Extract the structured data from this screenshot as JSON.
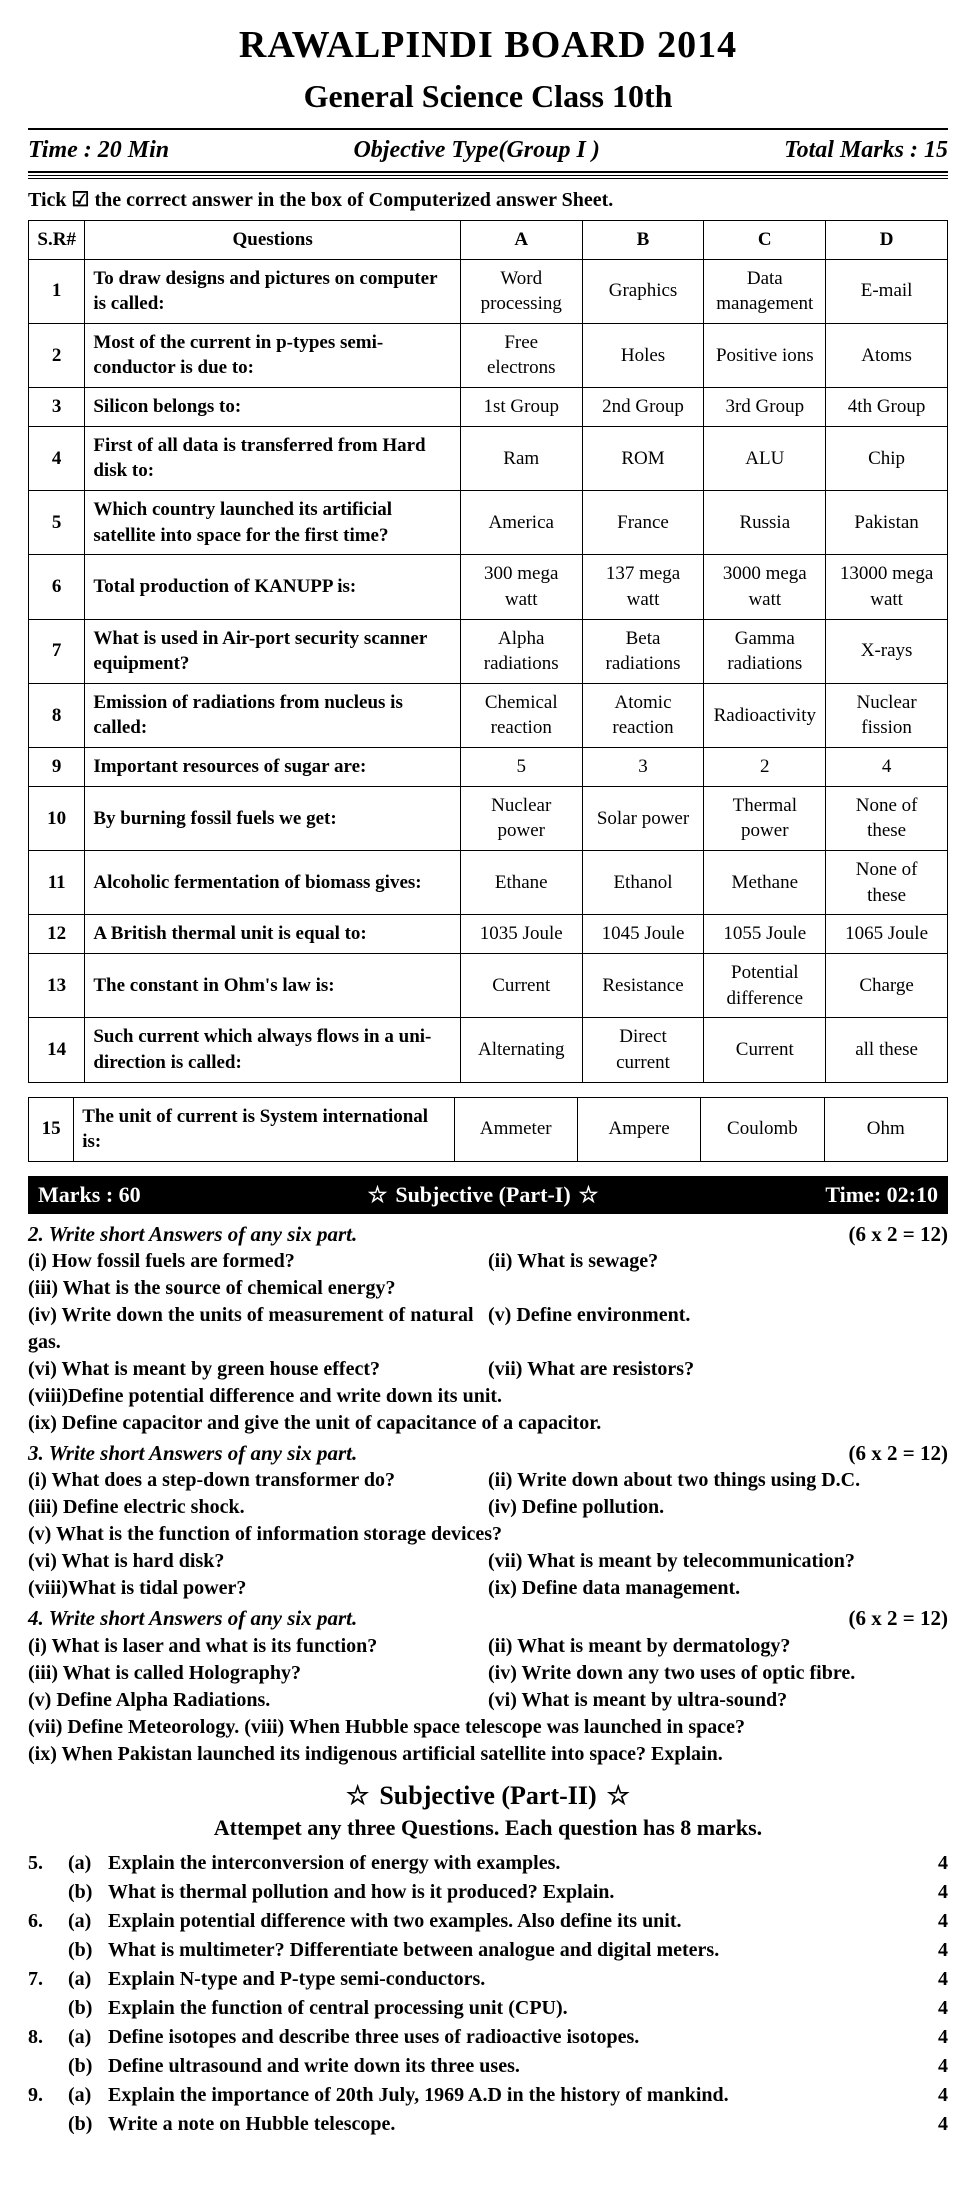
{
  "header": {
    "board": "RAWALPINDI BOARD   2014",
    "class": "General Science Class 10th",
    "time": "Time : 20 Min",
    "group": "Objective Type(Group I )",
    "marks": "Total Marks : 15"
  },
  "instruction": "Tick  ☑  the correct answer in the box of Computerized answer Sheet.",
  "table_headers": {
    "sr": "S.R#",
    "q": "Questions",
    "a": "A",
    "b": "B",
    "c": "C",
    "d": "D"
  },
  "questions": [
    {
      "n": "1",
      "q": "To draw designs and pictures on computer is called:",
      "a": "Word processing",
      "b": "Graphics",
      "c": "Data management",
      "d": "E-mail"
    },
    {
      "n": "2",
      "q": "Most of the current in p-types semi-conductor is due to:",
      "a": "Free electrons",
      "b": "Holes",
      "c": "Positive ions",
      "d": "Atoms"
    },
    {
      "n": "3",
      "q": "Silicon belongs to:",
      "a": "1st Group",
      "b": "2nd Group",
      "c": "3rd Group",
      "d": "4th Group"
    },
    {
      "n": "4",
      "q": "First of all data is transferred from Hard disk to:",
      "a": "Ram",
      "b": "ROM",
      "c": "ALU",
      "d": "Chip"
    },
    {
      "n": "5",
      "q": "Which country launched its artificial satellite into space for the first time?",
      "a": "America",
      "b": "France",
      "c": "Russia",
      "d": "Pakistan"
    },
    {
      "n": "6",
      "q": "Total production of KANUPP is:",
      "a": "300 mega watt",
      "b": "137 mega watt",
      "c": "3000 mega watt",
      "d": "13000 mega watt"
    },
    {
      "n": "7",
      "q": "What is used in Air-port security scanner equipment?",
      "a": "Alpha radiations",
      "b": "Beta radiations",
      "c": "Gamma radiations",
      "d": "X-rays"
    },
    {
      "n": "8",
      "q": "Emission of radiations from nucleus is called:",
      "a": "Chemical reaction",
      "b": "Atomic reaction",
      "c": "Radioactivity",
      "d": "Nuclear fission"
    },
    {
      "n": "9",
      "q": "Important resources of sugar are:",
      "a": "5",
      "b": "3",
      "c": "2",
      "d": "4"
    },
    {
      "n": "10",
      "q": "By burning fossil fuels we get:",
      "a": "Nuclear power",
      "b": "Solar power",
      "c": "Thermal power",
      "d": "None of these"
    },
    {
      "n": "11",
      "q": "Alcoholic fermentation of biomass gives:",
      "a": "Ethane",
      "b": "Ethanol",
      "c": "Methane",
      "d": "None of these"
    },
    {
      "n": "12",
      "q": "A British thermal unit is equal to:",
      "a": "1035 Joule",
      "b": "1045 Joule",
      "c": "1055 Joule",
      "d": "1065 Joule"
    },
    {
      "n": "13",
      "q": "The constant in Ohm's law is:",
      "a": "Current",
      "b": "Resistance",
      "c": "Potential difference",
      "d": "Charge"
    },
    {
      "n": "14",
      "q": "Such current which always flows in a uni-direction is called:",
      "a": "Alternating",
      "b": "Direct current",
      "c": "Current",
      "d": "all these"
    }
  ],
  "question15": {
    "n": "15",
    "q": "The unit of current is System international is:",
    "a": "Ammeter",
    "b": "Ampere",
    "c": "Coulomb",
    "d": "Ohm"
  },
  "blackbar": {
    "marks": "Marks : 60",
    "title": "Subjective (Part-I)",
    "time": "Time: 02:10"
  },
  "sec2": {
    "heading": "2.  Write short Answers of any six part.",
    "marks": "(6 x 2 = 12)",
    "items": [
      [
        "(i)   How fossil fuels are formed?",
        "(ii)  What is sewage?"
      ],
      [
        "(iii) What is the source of chemical energy?",
        ""
      ],
      [
        "(iv)  Write down the units of measurement of natural gas.",
        "(v)   Define environment."
      ],
      [
        "(vi)  What is meant by green house effect?",
        "(vii) What are resistors?"
      ],
      [
        "(viii)Define potential difference and write down its unit.",
        ""
      ],
      [
        "(ix)  Define capacitor and give the unit of capacitance of a capacitor.",
        ""
      ]
    ]
  },
  "sec3": {
    "heading": "3.  Write short Answers of any six part.",
    "marks": "(6 x 2 = 12)",
    "items": [
      [
        "(i)   What does a step-down transformer do?",
        "(ii)  Write down about two things using D.C."
      ],
      [
        "(iii) Define electric shock.",
        "(iv)  Define pollution."
      ],
      [
        "(v)   What is the function of information storage devices?",
        ""
      ],
      [
        "(vi)  What is hard disk?",
        "(vii) What is meant by telecommunication?"
      ],
      [
        "(viii)What is tidal power?",
        "(ix)  Define data management."
      ]
    ]
  },
  "sec4": {
    "heading": "4.  Write short Answers of any six part.",
    "marks": "(6 x 2 = 12)",
    "items": [
      [
        "(i)   What is laser and what is its function?",
        "(ii)  What is meant by dermatology?"
      ],
      [
        "(iii) What is called Holography?",
        "(iv)  Write down any two uses of optic fibre."
      ],
      [
        "(v)   Define Alpha Radiations.",
        "(vi)  What is meant by ultra-sound?"
      ],
      [
        "(vii) Define Meteorology.        (viii) When Hubble space telescope was launched in space?",
        ""
      ],
      [
        "(ix)  When Pakistan launched its indigenous artificial satellite into space? Explain.",
        ""
      ]
    ]
  },
  "part2_title": "Subjective (Part-II)",
  "attempt": "Attempet any three Questions.  Each question has 8 marks.",
  "longq": [
    {
      "num": "5.",
      "sub": "(a)",
      "txt": "Explain the interconversion of energy with examples.",
      "mk": "4"
    },
    {
      "num": "",
      "sub": "(b)",
      "txt": "What is thermal pollution and how is it produced? Explain.",
      "mk": "4"
    },
    {
      "num": "6.",
      "sub": "(a)",
      "txt": "Explain potential difference with two examples. Also define its unit.",
      "mk": "4"
    },
    {
      "num": "",
      "sub": "(b)",
      "txt": "What is multimeter? Differentiate between analogue and digital meters.",
      "mk": "4"
    },
    {
      "num": "7.",
      "sub": "(a)",
      "txt": "Explain N-type and P-type semi-conductors.",
      "mk": "4"
    },
    {
      "num": "",
      "sub": "(b)",
      "txt": "Explain the function of central processing unit (CPU).",
      "mk": "4"
    },
    {
      "num": "8.",
      "sub": "(a)",
      "txt": "Define isotopes and describe three uses of radioactive isotopes.",
      "mk": "4"
    },
    {
      "num": "",
      "sub": "(b)",
      "txt": "Define ultrasound and write down its three uses.",
      "mk": "4"
    },
    {
      "num": "9.",
      "sub": "(a)",
      "txt": "Explain the importance of 20th July, 1969 A.D in the history of mankind.",
      "mk": "4"
    },
    {
      "num": "",
      "sub": "(b)",
      "txt": "Write a note on Hubble telescope.",
      "mk": "4"
    }
  ]
}
